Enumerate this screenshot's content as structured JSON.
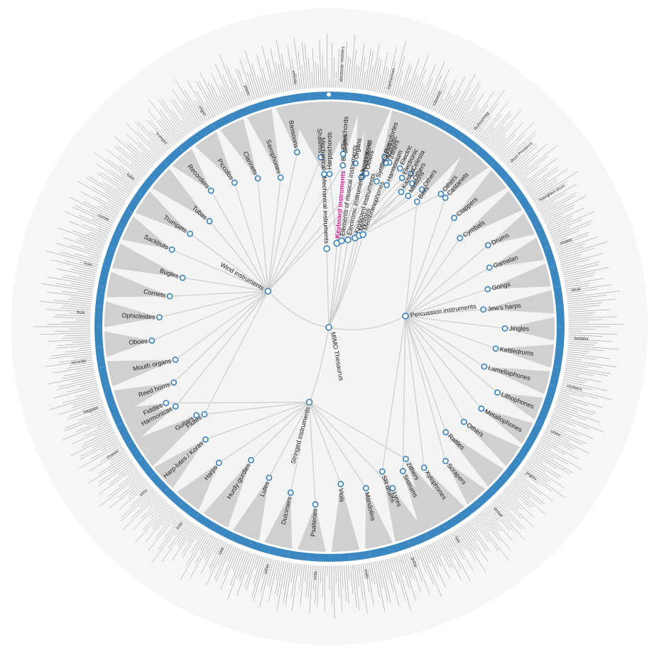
{
  "diagram": {
    "root": "MIMO Thesaurus",
    "highlight": "Keyboard instruments",
    "colors": {
      "page_bg": "#ffffff",
      "outer_disc": "#f6f6f6",
      "inner_disc": "#f4f4f4",
      "ring": "#3a87c2",
      "fan": "#d0d0d0",
      "link": "#cfcfcf",
      "node_stroke": "#3b82b8",
      "highlight": "#e0209a",
      "leaf_text": "#333333"
    },
    "families": [
      {
        "name": "Wind instruments",
        "children": [
          "Flutes",
          "Harmonicas",
          "Reed horns",
          "Mouth organs",
          "Oboes",
          "Ophicleides",
          "Cornets",
          "Bugles",
          "Sackbuts",
          "Trumpets",
          "Tubas",
          "Recorders",
          "Piccolos",
          "Clarinets",
          "Saxophones",
          "Bassoons",
          "Shawms",
          "Bagpipes",
          "Accordions",
          "Zithers"
        ]
      },
      {
        "name": "Mechanical instruments",
        "children": [
          "Mechanical"
        ]
      },
      {
        "name": "Keyboard instruments",
        "children": [
          "Harpsichords",
          "Clavichords",
          "Organs",
          "Others",
          "Pianofortes"
        ]
      },
      {
        "name": "Elements of musical instruments",
        "children": [
          "Accessories",
          "Acoustic",
          "Electronic"
        ]
      },
      {
        "name": "Electronic instruments",
        "children": [
          "Synthesizers",
          "Electric",
          "Others"
        ]
      },
      {
        "name": "Keyboard instruments",
        "children": [
          "Harmonium",
          "Celesta",
          "Others"
        ]
      },
      {
        "name": "Mirlitons",
        "children": [
          "Mirlitons"
        ]
      },
      {
        "name": "Membranophones",
        "children": [
          "Kazoos",
          "Others"
        ]
      },
      {
        "name": "Percussion instruments",
        "children": [
          "Bells",
          "Castanets",
          "Clappers",
          "Cymbals",
          "Drums",
          "Gamelan",
          "Gongs",
          "Jew's harps",
          "Jingles",
          "Kettledrums",
          "Lamellaphones",
          "Lithophones",
          "Metallophones",
          "Others",
          "Rattles",
          "Scrapers",
          "Xylophones",
          "Sistrums",
          "Slit drums"
        ]
      },
      {
        "name": "Stringed instruments",
        "children": [
          "Zithers",
          "Lyres",
          "Mandolins",
          "Viols",
          "Psalteries",
          "Dulcimers",
          "Lutes",
          "Hurdy-gurdies",
          "Harps",
          "Harp-lutes / Koras",
          "Guitars",
          "Fiddles"
        ]
      }
    ],
    "outer_leaf_samples": [
      "electronic modules",
      "harmonium",
      "clavecin",
      "Ruhrschlag",
      "drum Provence",
      "hourglass drum",
      "shaker",
      "khok",
      "badaba",
      "muhemi",
      "chien",
      "jingles",
      "timbal",
      "lute",
      "guitar",
      "violin",
      "viola",
      "zither",
      "sitar",
      "koto",
      "erhu",
      "shawm",
      "bagpipe",
      "recorder",
      "flute",
      "horn",
      "cornet",
      "tuba",
      "trumpet",
      "organ",
      "piano",
      "celesta"
    ]
  }
}
